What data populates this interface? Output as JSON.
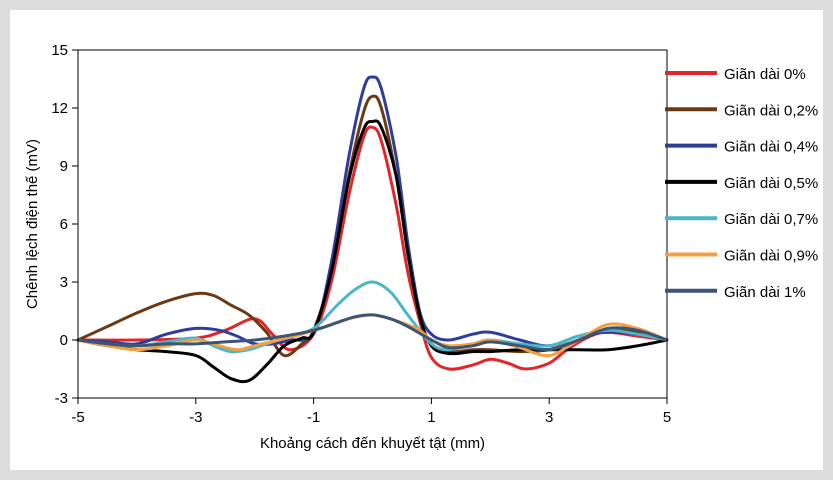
{
  "chart_data": {
    "type": "line",
    "title": "",
    "xlabel": "Khoảng cách đến khuyết tật (mm)",
    "ylabel": "Chênh lệch điện thế (mV)",
    "xlim": [
      -5,
      5
    ],
    "ylim": [
      -3,
      15
    ],
    "xticks": [
      -5,
      -3,
      -1,
      1,
      3,
      5
    ],
    "yticks": [
      -3,
      0,
      3,
      6,
      9,
      12,
      15
    ],
    "grid": false,
    "legend_position": "right",
    "series": [
      {
        "name": "Giãn dài 0%",
        "color": "#e3242b",
        "points": [
          [
            -5,
            0
          ],
          [
            -4,
            0
          ],
          [
            -3,
            0.1
          ],
          [
            -2.5,
            0.5
          ],
          [
            -2,
            1.1
          ],
          [
            -1.7,
            0.3
          ],
          [
            -1.4,
            -0.5
          ],
          [
            -1,
            0.3
          ],
          [
            -0.7,
            3
          ],
          [
            -0.4,
            7.5
          ],
          [
            -0.15,
            10.5
          ],
          [
            0,
            11
          ],
          [
            0.15,
            10.3
          ],
          [
            0.4,
            7
          ],
          [
            0.6,
            3.5
          ],
          [
            0.8,
            1
          ],
          [
            1,
            -0.9
          ],
          [
            1.3,
            -1.5
          ],
          [
            1.7,
            -1.3
          ],
          [
            2,
            -1
          ],
          [
            2.3,
            -1.2
          ],
          [
            2.6,
            -1.5
          ],
          [
            3,
            -1.2
          ],
          [
            3.3,
            -0.5
          ],
          [
            3.7,
            0.2
          ],
          [
            4,
            0.4
          ],
          [
            4.5,
            0.2
          ],
          [
            5,
            0
          ]
        ]
      },
      {
        "name": "Giãn dài 0,2%",
        "color": "#6b3a12",
        "points": [
          [
            -5,
            0
          ],
          [
            -4.5,
            0.7
          ],
          [
            -4,
            1.4
          ],
          [
            -3.5,
            2
          ],
          [
            -3,
            2.4
          ],
          [
            -2.7,
            2.3
          ],
          [
            -2.4,
            1.8
          ],
          [
            -2.1,
            1.3
          ],
          [
            -1.8,
            0.4
          ],
          [
            -1.5,
            -0.8
          ],
          [
            -1.2,
            -0.2
          ],
          [
            -1,
            0.5
          ],
          [
            -0.7,
            3.5
          ],
          [
            -0.4,
            8.5
          ],
          [
            -0.15,
            11.8
          ],
          [
            0,
            12.6
          ],
          [
            0.15,
            12
          ],
          [
            0.4,
            8.5
          ],
          [
            0.6,
            4.5
          ],
          [
            0.8,
            1.2
          ],
          [
            1,
            -0.2
          ],
          [
            1.3,
            -0.6
          ],
          [
            1.7,
            -0.5
          ],
          [
            2,
            -0.5
          ],
          [
            2.5,
            -0.6
          ],
          [
            3,
            -0.5
          ],
          [
            3.5,
            0
          ],
          [
            4,
            0.5
          ],
          [
            4.5,
            0.4
          ],
          [
            5,
            0
          ]
        ]
      },
      {
        "name": "Giãn dài 0,4%",
        "color": "#2e3d98",
        "points": [
          [
            -5,
            0
          ],
          [
            -4.5,
            -0.1
          ],
          [
            -4,
            -0.2
          ],
          [
            -3.5,
            0.3
          ],
          [
            -3,
            0.6
          ],
          [
            -2.6,
            0.5
          ],
          [
            -2.3,
            0.2
          ],
          [
            -2,
            -0.2
          ],
          [
            -1.7,
            -0.2
          ],
          [
            -1.4,
            0
          ],
          [
            -1,
            0.4
          ],
          [
            -0.7,
            4
          ],
          [
            -0.4,
            9.5
          ],
          [
            -0.15,
            13
          ],
          [
            0,
            13.6
          ],
          [
            0.15,
            13
          ],
          [
            0.4,
            9.5
          ],
          [
            0.6,
            5
          ],
          [
            0.8,
            1.5
          ],
          [
            1,
            0.3
          ],
          [
            1.3,
            0
          ],
          [
            1.7,
            0.3
          ],
          [
            2,
            0.4
          ],
          [
            2.5,
            0
          ],
          [
            3,
            -0.3
          ],
          [
            3.5,
            0.2
          ],
          [
            4,
            0.4
          ],
          [
            4.5,
            0.3
          ],
          [
            5,
            0
          ]
        ]
      },
      {
        "name": "Giãn dài 0,5%",
        "color": "#000000",
        "points": [
          [
            -5,
            0
          ],
          [
            -4.5,
            -0.3
          ],
          [
            -4,
            -0.5
          ],
          [
            -3.5,
            -0.6
          ],
          [
            -3,
            -0.8
          ],
          [
            -2.7,
            -1.4
          ],
          [
            -2.4,
            -2
          ],
          [
            -2.1,
            -2.1
          ],
          [
            -1.8,
            -1.3
          ],
          [
            -1.5,
            -0.3
          ],
          [
            -1.2,
            0.1
          ],
          [
            -1,
            0.4
          ],
          [
            -0.7,
            3.5
          ],
          [
            -0.4,
            8.3
          ],
          [
            -0.15,
            10.9
          ],
          [
            0,
            11.3
          ],
          [
            0.15,
            11
          ],
          [
            0.4,
            8.5
          ],
          [
            0.6,
            4.5
          ],
          [
            0.8,
            1.3
          ],
          [
            1,
            -0.3
          ],
          [
            1.3,
            -0.7
          ],
          [
            1.7,
            -0.6
          ],
          [
            2,
            -0.6
          ],
          [
            2.5,
            -0.5
          ],
          [
            3,
            -0.5
          ],
          [
            3.5,
            -0.5
          ],
          [
            4,
            -0.5
          ],
          [
            4.5,
            -0.3
          ],
          [
            5,
            0
          ]
        ]
      },
      {
        "name": "Giãn dài 0,7%",
        "color": "#4ab6c6",
        "points": [
          [
            -5,
            0
          ],
          [
            -4.5,
            -0.2
          ],
          [
            -4,
            -0.3
          ],
          [
            -3.5,
            -0.1
          ],
          [
            -3,
            0.1
          ],
          [
            -2.7,
            -0.3
          ],
          [
            -2.4,
            -0.6
          ],
          [
            -2.1,
            -0.5
          ],
          [
            -1.8,
            -0.2
          ],
          [
            -1.5,
            0.1
          ],
          [
            -1,
            0.6
          ],
          [
            -0.6,
            1.8
          ],
          [
            -0.3,
            2.6
          ],
          [
            0,
            3
          ],
          [
            0.3,
            2.5
          ],
          [
            0.6,
            1.3
          ],
          [
            1,
            -0.2
          ],
          [
            1.3,
            -0.5
          ],
          [
            1.7,
            -0.2
          ],
          [
            2,
            0
          ],
          [
            2.5,
            -0.2
          ],
          [
            3,
            -0.3
          ],
          [
            3.5,
            0.2
          ],
          [
            4,
            0.5
          ],
          [
            4.5,
            0.3
          ],
          [
            5,
            0
          ]
        ]
      },
      {
        "name": "Giãn dài 0,9%",
        "color": "#f4a041",
        "points": [
          [
            -5,
            0
          ],
          [
            -4.5,
            -0.3
          ],
          [
            -4,
            -0.5
          ],
          [
            -3.5,
            -0.3
          ],
          [
            -3,
            0
          ],
          [
            -2.6,
            -0.3
          ],
          [
            -2.3,
            -0.5
          ],
          [
            -2,
            -0.3
          ],
          [
            -1.6,
            0
          ],
          [
            -1.2,
            0.3
          ],
          [
            -0.8,
            0.7
          ],
          [
            -0.4,
            1.1
          ],
          [
            0,
            1.3
          ],
          [
            0.4,
            1
          ],
          [
            0.8,
            0.5
          ],
          [
            1,
            0
          ],
          [
            1.3,
            -0.3
          ],
          [
            1.7,
            -0.2
          ],
          [
            2,
            0
          ],
          [
            2.5,
            -0.4
          ],
          [
            3,
            -0.8
          ],
          [
            3.5,
            0
          ],
          [
            4,
            0.8
          ],
          [
            4.5,
            0.6
          ],
          [
            5,
            0
          ]
        ]
      },
      {
        "name": "Giãn dài 1%",
        "color": "#3b5577",
        "points": [
          [
            -5,
            0
          ],
          [
            -4.5,
            -0.2
          ],
          [
            -4,
            -0.3
          ],
          [
            -3.5,
            -0.2
          ],
          [
            -3,
            -0.2
          ],
          [
            -2.5,
            -0.1
          ],
          [
            -2,
            0
          ],
          [
            -1.5,
            0.2
          ],
          [
            -1,
            0.5
          ],
          [
            -0.6,
            0.9
          ],
          [
            -0.3,
            1.2
          ],
          [
            0,
            1.3
          ],
          [
            0.3,
            1.1
          ],
          [
            0.6,
            0.7
          ],
          [
            1,
            0
          ],
          [
            1.3,
            -0.4
          ],
          [
            1.7,
            -0.3
          ],
          [
            2,
            -0.1
          ],
          [
            2.5,
            -0.3
          ],
          [
            3,
            -0.5
          ],
          [
            3.5,
            0
          ],
          [
            4,
            0.6
          ],
          [
            4.5,
            0.5
          ],
          [
            5,
            0
          ]
        ]
      }
    ]
  }
}
